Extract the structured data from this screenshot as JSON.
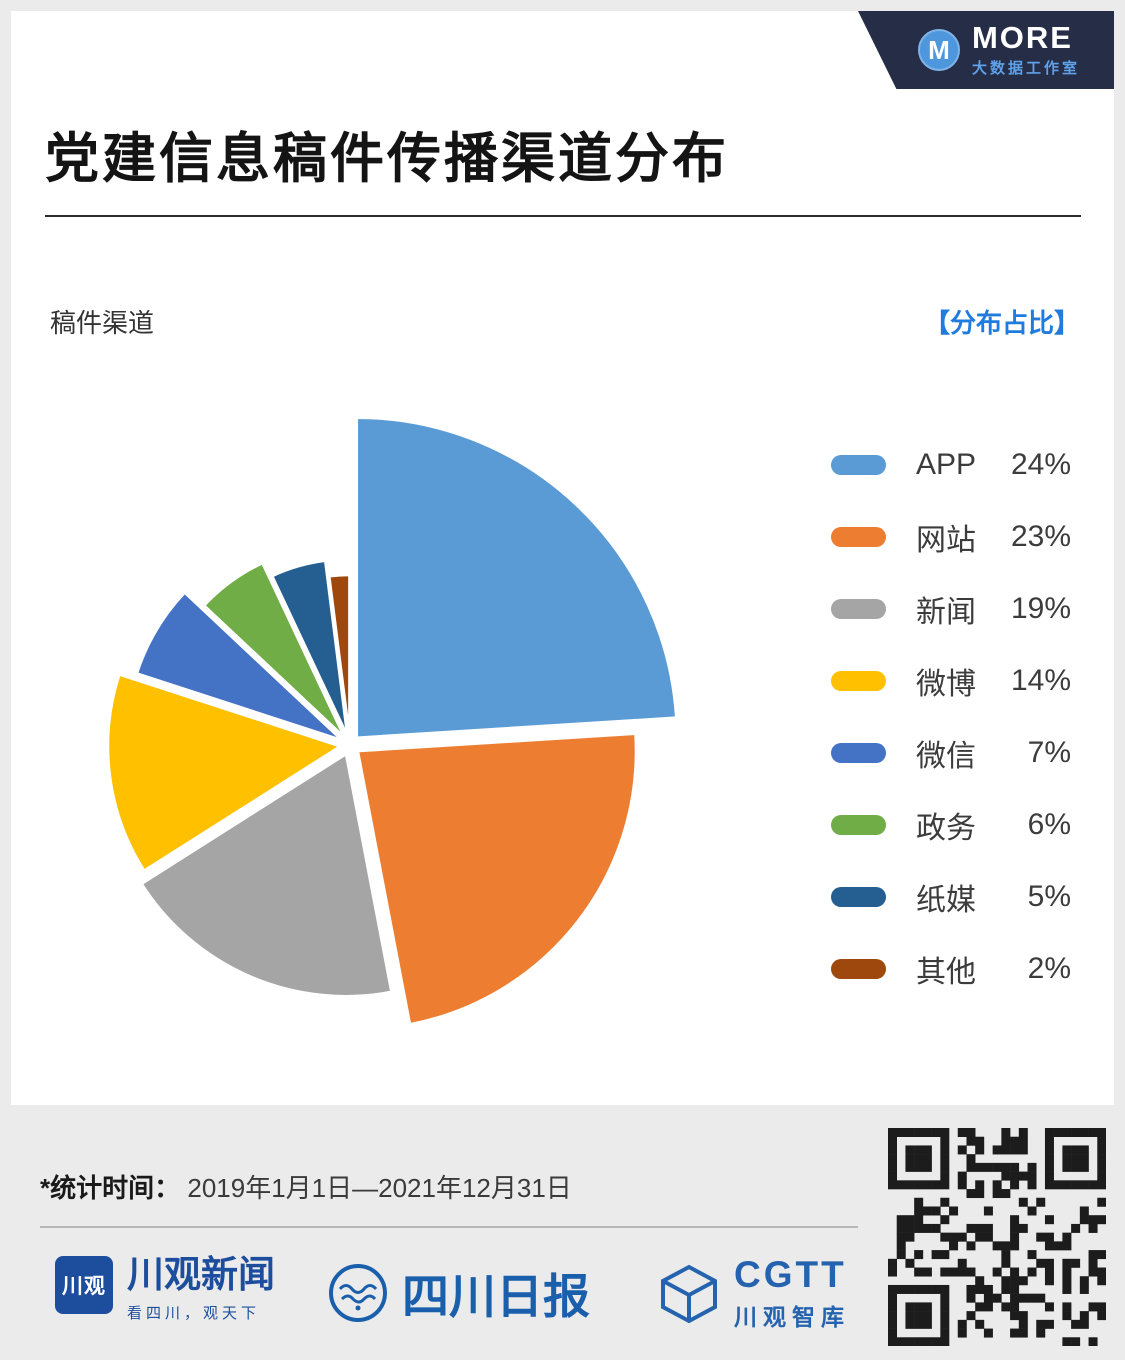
{
  "brand_badge": {
    "icon_letter": "M",
    "name": "MORE",
    "subtitle": "大数据工作室"
  },
  "page_title": "党建信息稿件传播渠道分布",
  "chart_header": {
    "left_label": "稿件渠道",
    "right_label": "【分布占比】"
  },
  "chart_data": {
    "type": "pie",
    "title": "党建信息稿件传播渠道分布",
    "categories": [
      "APP",
      "网站",
      "新闻",
      "微博",
      "微信",
      "政务",
      "纸媒",
      "其他"
    ],
    "values": [
      24,
      23,
      19,
      14,
      7,
      6,
      5,
      2
    ],
    "unit": "%",
    "colors": [
      "#5B9BD5",
      "#ED7D31",
      "#A5A5A5",
      "#FFC000",
      "#4472C4",
      "#70AD47",
      "#255E91",
      "#9E480E"
    ],
    "legend_position": "right",
    "start_angle": "top",
    "direction": "clockwise",
    "style": "exploded slices with radius decreasing by share"
  },
  "footer": {
    "stat_label": "*统计时间：",
    "stat_value": "2019年1月1日—2021年12月31日",
    "logos": [
      {
        "icon_text": "川观",
        "name": "川观新闻",
        "tagline": "看四川，观天下"
      },
      {
        "name": "四川日报"
      },
      {
        "name": "CGTT",
        "subtitle": "川观智库"
      }
    ]
  },
  "colors": {
    "accent_blue": "#1f7cde",
    "badge_bg": "#252d47",
    "page_bg": "#ebebeb"
  }
}
